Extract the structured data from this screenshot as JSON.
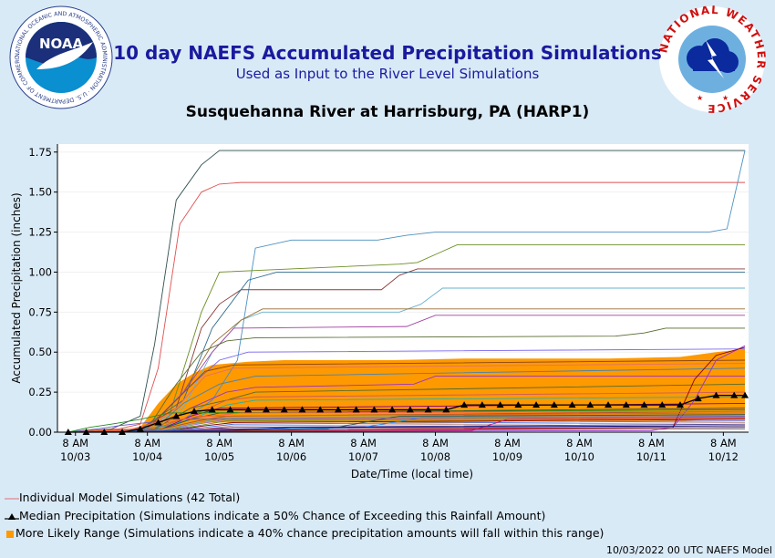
{
  "header": {
    "title": "10 day NAEFS Accumulated Precipitation Simulations",
    "subtitle": "Used as Input to the River Level Simulations",
    "location": "Susquehanna River at Harrisburg, PA (HARP1)",
    "noaa_logo_text": "NOAA",
    "noaa_ring_text": "NATIONAL OCEANIC AND ATMOSPHERIC ADMINISTRATION · U.S. DEPARTMENT OF COMMERCE",
    "nws_ring_text": "NATIONAL WEATHER SERVICE"
  },
  "legend": {
    "individual": "Individual Model Simulations (42 Total)",
    "median": "Median Precipitation (Simulations indicate a 50% Chance of Exceeding this Rainfall Amount)",
    "range": "More Likely Range (Simulations indicate a 40% chance precipitation amounts will fall within this range)"
  },
  "footer": "10/03/2022 00 UTC NAEFS Model",
  "colors": {
    "background": "#d9eaf7",
    "range_fill": "#ff9900",
    "title": "#1a1a9e",
    "individual": "#e07070"
  },
  "chart_data": {
    "type": "line",
    "xlabel": "Date/Time (local time)",
    "ylabel": "Accumulated Precipitation (inches)",
    "xlim": [
      -0.25,
      9.35
    ],
    "ylim": [
      0,
      1.8
    ],
    "y_ticks": [
      "0.00",
      "0.25",
      "0.50",
      "0.75",
      "1.00",
      "1.25",
      "1.50",
      "1.75"
    ],
    "x_ticks": [
      {
        "x": 0,
        "time": "8 AM",
        "date": "10/03"
      },
      {
        "x": 1,
        "time": "8 AM",
        "date": "10/04"
      },
      {
        "x": 2,
        "time": "8 AM",
        "date": "10/05"
      },
      {
        "x": 3,
        "time": "8 AM",
        "date": "10/06"
      },
      {
        "x": 4,
        "time": "8 AM",
        "date": "10/07"
      },
      {
        "x": 5,
        "time": "8 AM",
        "date": "10/08"
      },
      {
        "x": 6,
        "time": "8 AM",
        "date": "10/09"
      },
      {
        "x": 7,
        "time": "8 AM",
        "date": "10/10"
      },
      {
        "x": 8,
        "time": "8 AM",
        "date": "10/11"
      },
      {
        "x": 9,
        "time": "8 AM",
        "date": "10/12"
      }
    ],
    "x_units": "days since 8 AM 10/03",
    "median": {
      "x": [
        -0.1,
        0.15,
        0.4,
        0.65,
        0.9,
        1.15,
        1.4,
        1.65,
        1.9,
        2.15,
        2.4,
        2.65,
        2.9,
        3.15,
        3.4,
        3.65,
        3.9,
        4.15,
        4.4,
        4.65,
        4.9,
        5.15,
        5.4,
        5.65,
        5.9,
        6.15,
        6.4,
        6.65,
        6.9,
        7.15,
        7.4,
        7.65,
        7.9,
        8.15,
        8.4,
        8.65,
        8.9,
        9.15,
        9.3
      ],
      "y": [
        0,
        0,
        0,
        0,
        0.02,
        0.06,
        0.1,
        0.13,
        0.14,
        0.14,
        0.14,
        0.14,
        0.14,
        0.14,
        0.14,
        0.14,
        0.14,
        0.14,
        0.14,
        0.14,
        0.14,
        0.14,
        0.17,
        0.17,
        0.17,
        0.17,
        0.17,
        0.17,
        0.17,
        0.17,
        0.17,
        0.17,
        0.17,
        0.17,
        0.17,
        0.21,
        0.23,
        0.23,
        0.23
      ]
    },
    "range": {
      "x": [
        0.9,
        1.15,
        1.4,
        1.65,
        1.9,
        2.4,
        2.9,
        3.4,
        4.4,
        5.4,
        6.4,
        7.4,
        8.4,
        8.9,
        9.3
      ],
      "lower": [
        0,
        0.01,
        0.03,
        0.05,
        0.06,
        0.06,
        0.06,
        0.06,
        0.06,
        0.06,
        0.07,
        0.07,
        0.07,
        0.08,
        0.08
      ],
      "upper": [
        0.03,
        0.18,
        0.3,
        0.37,
        0.42,
        0.44,
        0.45,
        0.45,
        0.45,
        0.46,
        0.46,
        0.46,
        0.47,
        0.5,
        0.52
      ]
    },
    "series": [
      {
        "color": "#2f4f4f",
        "x": [
          -0.1,
          0.5,
          0.9,
          1.1,
          1.4,
          1.75,
          2.0,
          9.3
        ],
        "y": [
          0,
          0.02,
          0.1,
          0.55,
          1.45,
          1.67,
          1.76,
          1.76
        ]
      },
      {
        "color": "#e05050",
        "x": [
          -0.1,
          0.6,
          0.9,
          1.15,
          1.45,
          1.75,
          2.0,
          2.3,
          9.3
        ],
        "y": [
          0,
          0.02,
          0.05,
          0.4,
          1.3,
          1.5,
          1.55,
          1.56,
          1.56
        ]
      },
      {
        "color": "#4a90c0",
        "x": [
          -0.1,
          0.9,
          1.4,
          1.9,
          2.25,
          2.5,
          3.0,
          4.2,
          4.6,
          5.0,
          8.8,
          9.05,
          9.3
        ],
        "y": [
          0,
          0.02,
          0.05,
          0.2,
          0.45,
          1.15,
          1.2,
          1.2,
          1.23,
          1.25,
          1.25,
          1.27,
          1.76
        ]
      },
      {
        "color": "#6b8e23",
        "x": [
          -0.1,
          0.9,
          1.3,
          1.75,
          2.0,
          4.5,
          4.75,
          5.05,
          5.3,
          9.3
        ],
        "y": [
          0,
          0.02,
          0.1,
          0.75,
          1.0,
          1.05,
          1.06,
          1.12,
          1.17,
          1.17
        ]
      },
      {
        "color": "#8b3a3a",
        "x": [
          -0.1,
          0.9,
          1.4,
          1.75,
          2.0,
          2.3,
          4.25,
          4.5,
          4.75,
          9.3
        ],
        "y": [
          0,
          0.02,
          0.15,
          0.65,
          0.8,
          0.89,
          0.89,
          0.98,
          1.02,
          1.02
        ]
      },
      {
        "color": "#2e6b8e",
        "x": [
          -0.1,
          0.9,
          1.5,
          1.9,
          2.4,
          2.8,
          9.3
        ],
        "y": [
          0,
          0.02,
          0.2,
          0.65,
          0.95,
          1.0,
          1.0
        ]
      },
      {
        "color": "#66b2cc",
        "x": [
          -0.1,
          0.9,
          1.5,
          1.9,
          2.3,
          2.6,
          4.5,
          4.8,
          5.1,
          9.3
        ],
        "y": [
          0,
          0.01,
          0.15,
          0.5,
          0.7,
          0.75,
          0.75,
          0.8,
          0.9,
          0.9
        ]
      },
      {
        "color": "#9c6b30",
        "x": [
          -0.1,
          1.0,
          1.5,
          1.9,
          2.3,
          2.6,
          9.3
        ],
        "y": [
          0,
          0.02,
          0.25,
          0.55,
          0.7,
          0.77,
          0.77
        ]
      },
      {
        "color": "#a040a0",
        "x": [
          -0.1,
          1.0,
          1.5,
          1.9,
          2.2,
          4.6,
          5.0,
          9.3
        ],
        "y": [
          0,
          0.02,
          0.25,
          0.5,
          0.65,
          0.66,
          0.73,
          0.73
        ]
      },
      {
        "color": "#556b2f",
        "x": [
          -0.1,
          1.0,
          1.4,
          1.75,
          2.1,
          2.5,
          7.5,
          7.9,
          8.2,
          9.3
        ],
        "y": [
          0,
          0.02,
          0.3,
          0.5,
          0.57,
          0.59,
          0.6,
          0.62,
          0.65,
          0.65
        ]
      },
      {
        "color": "#7b68ee",
        "x": [
          -0.1,
          1.0,
          1.5,
          2.0,
          2.4,
          9.3
        ],
        "y": [
          0,
          0.02,
          0.25,
          0.45,
          0.5,
          0.52
        ]
      },
      {
        "color": "#8b4513",
        "x": [
          -0.1,
          1.0,
          1.4,
          1.8,
          2.2,
          9.3
        ],
        "y": [
          0,
          0.02,
          0.2,
          0.38,
          0.42,
          0.45
        ]
      },
      {
        "color": "#e07070",
        "x": [
          -0.1,
          1.0,
          1.4,
          1.8,
          2.2,
          9.3
        ],
        "y": [
          0,
          0.02,
          0.15,
          0.35,
          0.4,
          0.43
        ]
      },
      {
        "color": "#4682b4",
        "x": [
          -0.1,
          1.1,
          1.5,
          2.0,
          2.5,
          9.3
        ],
        "y": [
          0,
          0.02,
          0.18,
          0.3,
          0.35,
          0.4
        ]
      },
      {
        "color": "#9932cc",
        "x": [
          -0.1,
          1.1,
          1.6,
          2.1,
          2.5,
          4.7,
          5.0,
          9.3
        ],
        "y": [
          0,
          0.02,
          0.15,
          0.25,
          0.28,
          0.3,
          0.35,
          0.35
        ]
      },
      {
        "color": "#556b2f",
        "x": [
          -0.1,
          1.1,
          1.6,
          2.1,
          2.5,
          9.3
        ],
        "y": [
          0,
          0.02,
          0.15,
          0.2,
          0.25,
          0.3
        ]
      },
      {
        "color": "#cd5c5c",
        "x": [
          -0.1,
          1.1,
          1.6,
          2.1,
          2.5,
          9.3
        ],
        "y": [
          0,
          0.02,
          0.1,
          0.2,
          0.22,
          0.25
        ]
      },
      {
        "color": "#20b2aa",
        "x": [
          -0.1,
          1.1,
          1.6,
          2.1,
          2.5,
          9.3
        ],
        "y": [
          0,
          0.02,
          0.08,
          0.17,
          0.2,
          0.22
        ]
      },
      {
        "color": "#8b008b",
        "x": [
          -0.1,
          1.2,
          1.6,
          2.0,
          9.3
        ],
        "y": [
          0,
          0.02,
          0.1,
          0.15,
          0.18
        ]
      },
      {
        "color": "#2f4f4f",
        "x": [
          -0.1,
          1.2,
          1.6,
          2.0,
          9.3
        ],
        "y": [
          0,
          0.02,
          0.08,
          0.12,
          0.15
        ]
      },
      {
        "color": "#a0522d",
        "x": [
          -0.1,
          1.2,
          1.7,
          2.1,
          9.3
        ],
        "y": [
          0,
          0.02,
          0.07,
          0.1,
          0.13
        ]
      },
      {
        "color": "#5f9ea0",
        "x": [
          -0.1,
          1.2,
          1.7,
          2.1,
          9.3
        ],
        "y": [
          0,
          0.01,
          0.06,
          0.09,
          0.11
        ]
      },
      {
        "color": "#9370db",
        "x": [
          -0.1,
          1.2,
          1.7,
          2.1,
          9.3
        ],
        "y": [
          0,
          0.01,
          0.05,
          0.08,
          0.1
        ]
      },
      {
        "color": "#6b8e23",
        "x": [
          -0.1,
          1.2,
          1.7,
          2.1,
          9.3
        ],
        "y": [
          0,
          0.01,
          0.04,
          0.07,
          0.09
        ]
      },
      {
        "color": "#800000",
        "x": [
          -0.1,
          1.3,
          1.8,
          2.2,
          9.3
        ],
        "y": [
          0,
          0.01,
          0.04,
          0.06,
          0.08
        ]
      },
      {
        "color": "#4169e1",
        "x": [
          -0.1,
          1.3,
          1.8,
          2.2,
          9.3
        ],
        "y": [
          0,
          0.01,
          0.03,
          0.05,
          0.07
        ]
      },
      {
        "color": "#bc8f8f",
        "x": [
          -0.1,
          1.3,
          1.8,
          2.2,
          9.3
        ],
        "y": [
          0,
          0.01,
          0.02,
          0.04,
          0.06
        ]
      },
      {
        "color": "#483d8b",
        "x": [
          -0.1,
          1.3,
          1.8,
          2.2,
          9.3
        ],
        "y": [
          0,
          0.01,
          0.02,
          0.03,
          0.05
        ]
      },
      {
        "color": "#8fbc8f",
        "x": [
          -0.1,
          1.4,
          1.9,
          9.3
        ],
        "y": [
          0,
          0.01,
          0.02,
          0.04
        ]
      },
      {
        "color": "#b03060",
        "x": [
          -0.1,
          1.4,
          1.9,
          9.3
        ],
        "y": [
          0,
          0.01,
          0.02,
          0.03
        ]
      },
      {
        "color": "#708090",
        "x": [
          -0.1,
          1.4,
          1.9,
          9.3
        ],
        "y": [
          0,
          0.0,
          0.01,
          0.02
        ]
      },
      {
        "color": "#9932cc",
        "x": [
          -0.1,
          8.0,
          8.3,
          8.6,
          8.9,
          9.3
        ],
        "y": [
          0,
          0.01,
          0.03,
          0.2,
          0.45,
          0.54
        ]
      },
      {
        "color": "#8b0000",
        "x": [
          -0.1,
          8.3,
          8.6,
          8.9,
          9.3
        ],
        "y": [
          0,
          0.03,
          0.33,
          0.48,
          0.53
        ]
      },
      {
        "color": "#2f4f4f",
        "x": [
          -0.1,
          3.5,
          4.5,
          9.3
        ],
        "y": [
          0,
          0.02,
          0.1,
          0.11
        ]
      },
      {
        "color": "#c71585",
        "x": [
          -0.1,
          5.5,
          6.0,
          9.3
        ],
        "y": [
          0,
          0.01,
          0.08,
          0.09
        ]
      },
      {
        "color": "#1e90ff",
        "x": [
          -0.1,
          4.0,
          4.8,
          9.3
        ],
        "y": [
          0,
          0.03,
          0.09,
          0.1
        ]
      },
      {
        "color": "#6a5acd",
        "x": [
          -0.1,
          0.3,
          0.6,
          1.0,
          1.4,
          9.3
        ],
        "y": [
          0,
          0.02,
          0.04,
          0.06,
          0.08,
          0.1
        ]
      },
      {
        "color": "#228b22",
        "x": [
          -0.1,
          0.2,
          0.5,
          0.9,
          1.3,
          9.3
        ],
        "y": [
          0,
          0.03,
          0.05,
          0.08,
          0.12,
          0.14
        ]
      },
      {
        "color": "#d2691e",
        "x": [
          -0.1,
          0.8,
          1.2,
          1.7,
          9.3
        ],
        "y": [
          0,
          0.02,
          0.05,
          0.1,
          0.12
        ]
      },
      {
        "color": "#ff6347",
        "x": [
          -0.1,
          0.7,
          1.2,
          2.3,
          9.3
        ],
        "y": [
          0,
          0.01,
          0.07,
          0.12,
          0.13
        ]
      },
      {
        "color": "#00008b",
        "x": [
          -0.1,
          2.0,
          3.0,
          9.3
        ],
        "y": [
          0,
          0.01,
          0.03,
          0.04
        ]
      },
      {
        "color": "#a52a2a",
        "x": [
          -0.1,
          3.0,
          6.0,
          9.3
        ],
        "y": [
          0,
          0.01,
          0.02,
          0.03
        ]
      }
    ]
  }
}
